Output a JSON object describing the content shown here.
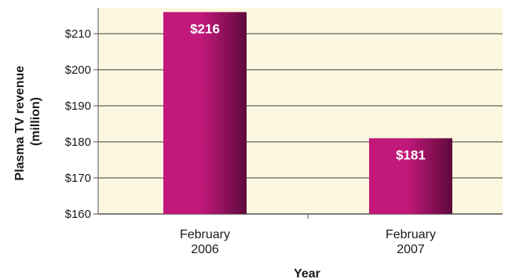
{
  "chart_data": {
    "type": "bar",
    "categories": [
      "February 2006",
      "February 2007"
    ],
    "category_lines": [
      [
        "February",
        "2006"
      ],
      [
        "February",
        "2007"
      ]
    ],
    "values": [
      216,
      181
    ],
    "value_labels": [
      "$216",
      "$181"
    ],
    "xlabel": "Year",
    "ylabel_lines": [
      "Plasma TV revenue",
      "(million)"
    ],
    "ylim": [
      160,
      217
    ],
    "yticks": [
      160,
      170,
      180,
      190,
      200,
      210
    ],
    "ytick_labels": [
      "$160",
      "$170",
      "$180",
      "$190",
      "$200",
      "$210"
    ],
    "grid": true,
    "colors": {
      "plot_background": "#fbf8df",
      "gridline": "#3a3a3a",
      "bar_light": "#c2187a",
      "bar_dark": "#5e0a3c",
      "axis": "#555555"
    }
  }
}
